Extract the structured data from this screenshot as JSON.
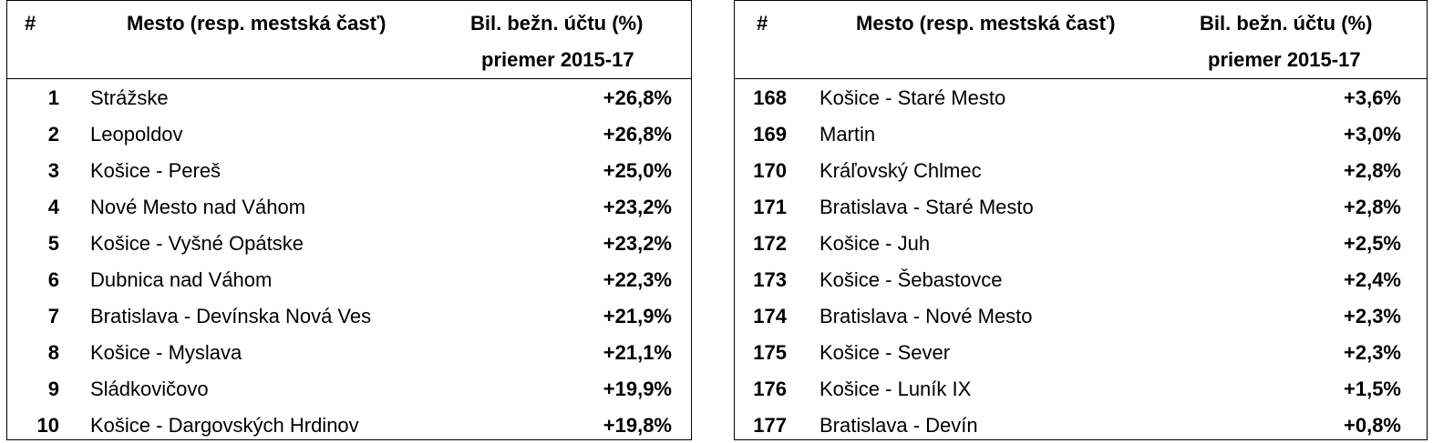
{
  "headers": {
    "rank": "#",
    "city": "Mesto (resp. mestská časť)",
    "value_line1": "Bil. bežn. účtu (%)",
    "value_line2": "priemer 2015-17"
  },
  "left_rows": [
    {
      "rank": "1",
      "city": "Strážske",
      "value": "+26,8%"
    },
    {
      "rank": "2",
      "city": "Leopoldov",
      "value": "+26,8%"
    },
    {
      "rank": "3",
      "city": "Košice - Pereš",
      "value": "+25,0%"
    },
    {
      "rank": "4",
      "city": "Nové Mesto nad Váhom",
      "value": "+23,2%"
    },
    {
      "rank": "5",
      "city": "Košice - Vyšné Opátske",
      "value": "+23,2%"
    },
    {
      "rank": "6",
      "city": "Dubnica nad Váhom",
      "value": "+22,3%"
    },
    {
      "rank": "7",
      "city": "Bratislava - Devínska Nová Ves",
      "value": "+21,9%"
    },
    {
      "rank": "8",
      "city": "Košice - Myslava",
      "value": "+21,1%"
    },
    {
      "rank": "9",
      "city": "Sládkovičovo",
      "value": "+19,9%"
    },
    {
      "rank": "10",
      "city": "Košice - Dargovských Hrdinov",
      "value": "+19,8%"
    }
  ],
  "right_rows": [
    {
      "rank": "168",
      "city": "Košice - Staré Mesto",
      "value": "+3,6%"
    },
    {
      "rank": "169",
      "city": "Martin",
      "value": "+3,0%"
    },
    {
      "rank": "170",
      "city": "Kráľovský Chlmec",
      "value": "+2,8%"
    },
    {
      "rank": "171",
      "city": "Bratislava - Staré Mesto",
      "value": "+2,8%"
    },
    {
      "rank": "172",
      "city": "Košice - Juh",
      "value": "+2,5%"
    },
    {
      "rank": "173",
      "city": "Košice - Šebastovce",
      "value": "+2,4%"
    },
    {
      "rank": "174",
      "city": "Bratislava - Nové Mesto",
      "value": "+2,3%"
    },
    {
      "rank": "175",
      "city": "Košice - Sever",
      "value": "+2,3%"
    },
    {
      "rank": "176",
      "city": "Košice - Luník IX",
      "value": "+1,5%"
    },
    {
      "rank": "177",
      "city": "Bratislava - Devín",
      "value": "+0,8%"
    }
  ]
}
